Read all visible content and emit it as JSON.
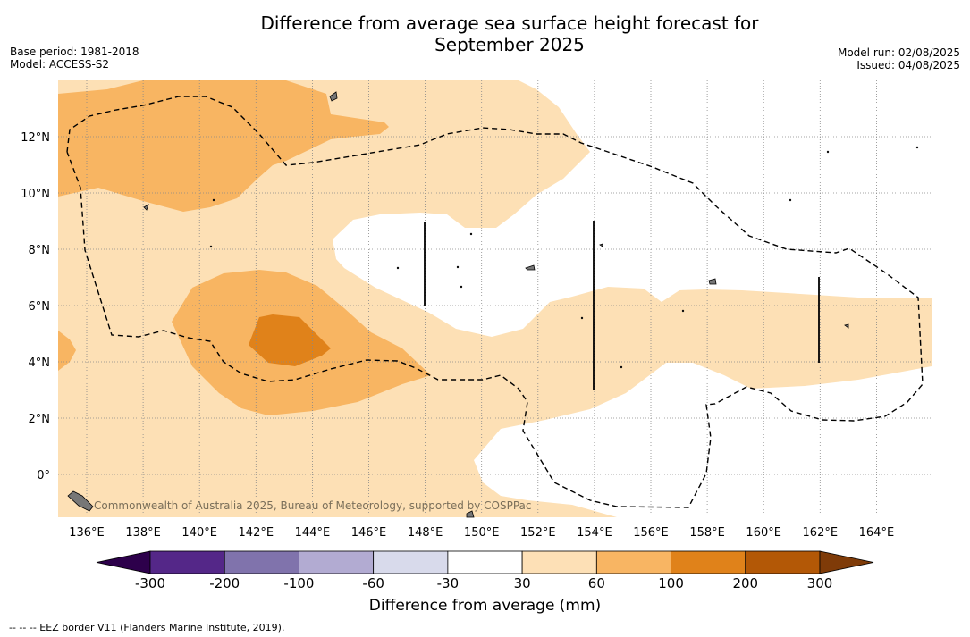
{
  "header": {
    "title_line1": "Difference from average sea surface height forecast for",
    "title_line2": "September 2025",
    "base_period": "Base period: 1981-2018",
    "model": "Model: ACCESS-S2",
    "model_run": "Model run: 02/08/2025",
    "issued": "Issued: 04/08/2025"
  },
  "map": {
    "lon_labels": [
      "136°E",
      "138°E",
      "140°E",
      "142°E",
      "144°E",
      "146°E",
      "148°E",
      "150°E",
      "152°E",
      "154°E",
      "156°E",
      "158°E",
      "160°E",
      "162°E",
      "164°E"
    ],
    "lat_labels": [
      "12°N",
      "10°N",
      "8°N",
      "6°N",
      "4°N",
      "2°N",
      "0°"
    ],
    "credit": "Commonwealth of Australia 2025, Bureau of Meteorology, supported by COSPPac",
    "shading_colors": {
      "band_30_60": "#fde0b5",
      "band_60_100": "#f8b562",
      "band_100_200": "#e0821a",
      "band_200_300": "#b35806"
    }
  },
  "colorbar": {
    "title": "Difference from average (mm)",
    "tick_labels": [
      "-300",
      "-200",
      "-100",
      "-60",
      "-30",
      "30",
      "60",
      "100",
      "200",
      "300"
    ],
    "colors": [
      "#2d004b",
      "#542788",
      "#8073ac",
      "#b2abd2",
      "#d8daeb",
      "#ffffff",
      "#fde0b6",
      "#f8b563",
      "#e0821a",
      "#b35806",
      "#7f3b08"
    ]
  },
  "footnote": "-- -- -- EEZ border V11 (Flanders Marine Institute, 2019)."
}
